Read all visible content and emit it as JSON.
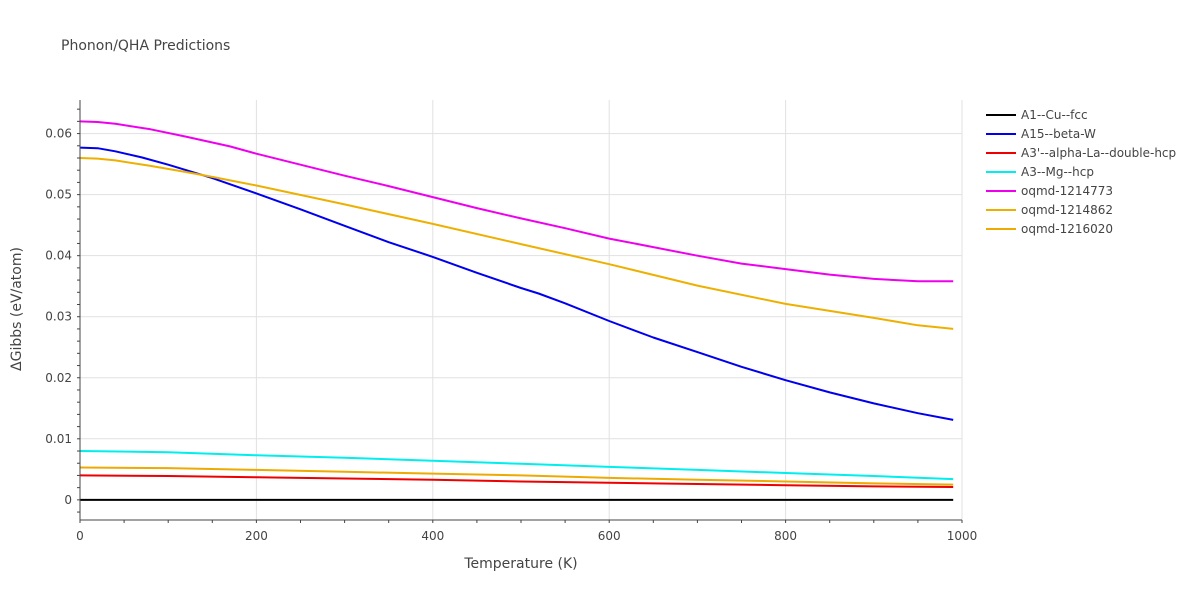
{
  "chart_data": {
    "type": "line",
    "title": "Phonon/QHA Predictions",
    "xlabel": "Temperature (K)",
    "ylabel": "ΔGibbs (eV/atom)",
    "xlim": [
      0,
      1000
    ],
    "ylim": [
      -0.0033,
      0.0655
    ],
    "x_ticks": [
      0,
      200,
      400,
      600,
      800,
      1000
    ],
    "y_ticks": [
      0,
      0.01,
      0.02,
      0.03,
      0.04,
      0.05,
      0.06
    ],
    "x_tick_labels": [
      "0",
      "200",
      "400",
      "600",
      "800",
      "1000"
    ],
    "y_tick_labels": [
      "0",
      "0.01",
      "0.02",
      "0.03",
      "0.04",
      "0.05",
      "0.06"
    ],
    "grid": true,
    "legend_position": "top-right",
    "series": [
      {
        "name": "A1--Cu--fcc",
        "color": "#000000",
        "x": [
          0,
          990
        ],
        "y": [
          0,
          0
        ]
      },
      {
        "name": "A15--beta-W",
        "color": "#0000ee",
        "x": [
          0,
          20,
          40,
          70,
          100,
          150,
          200,
          250,
          300,
          350,
          400,
          450,
          500,
          520,
          550,
          600,
          650,
          700,
          750,
          800,
          850,
          900,
          950,
          990
        ],
        "y": [
          0.0577,
          0.0576,
          0.0571,
          0.0561,
          0.0549,
          0.0527,
          0.0502,
          0.0476,
          0.0449,
          0.0422,
          0.0398,
          0.0372,
          0.0347,
          0.0338,
          0.0322,
          0.0293,
          0.0266,
          0.0242,
          0.0218,
          0.0196,
          0.0176,
          0.0158,
          0.0142,
          0.0131
        ]
      },
      {
        "name": "A3'--alpha-La--double-hcp",
        "color": "#ee0000",
        "x": [
          0,
          100,
          200,
          300,
          400,
          500,
          600,
          700,
          800,
          900,
          990
        ],
        "y": [
          0.004,
          0.0039,
          0.0037,
          0.0035,
          0.0033,
          0.003,
          0.0028,
          0.0026,
          0.0024,
          0.0022,
          0.0021
        ]
      },
      {
        "name": "A3--Mg--hcp",
        "color": "#00eeee",
        "x": [
          0,
          100,
          200,
          300,
          400,
          500,
          600,
          700,
          800,
          900,
          990
        ],
        "y": [
          0.008,
          0.0078,
          0.0073,
          0.0069,
          0.0064,
          0.0059,
          0.0054,
          0.0049,
          0.0044,
          0.0039,
          0.0034
        ]
      },
      {
        "name": "oqmd-1214773",
        "color": "#ee00ee",
        "x": [
          0,
          20,
          40,
          80,
          120,
          170,
          200,
          250,
          300,
          350,
          400,
          450,
          500,
          550,
          600,
          650,
          700,
          750,
          800,
          850,
          900,
          950,
          990
        ],
        "y": [
          0.062,
          0.0619,
          0.0616,
          0.0607,
          0.0595,
          0.0579,
          0.0567,
          0.0549,
          0.0531,
          0.0514,
          0.0496,
          0.0478,
          0.0461,
          0.0445,
          0.0428,
          0.0414,
          0.04,
          0.0387,
          0.0378,
          0.0369,
          0.0362,
          0.0358,
          0.0358
        ]
      },
      {
        "name": "oqmd-1214862",
        "color": "#eeb000",
        "x": [
          0,
          20,
          40,
          80,
          120,
          150,
          200,
          300,
          400,
          500,
          600,
          700,
          800,
          900,
          950,
          990
        ],
        "y": [
          0.056,
          0.0559,
          0.0556,
          0.0547,
          0.0537,
          0.0529,
          0.0515,
          0.0484,
          0.0452,
          0.0419,
          0.0386,
          0.0351,
          0.0321,
          0.0298,
          0.0286,
          0.028
        ]
      },
      {
        "name": "oqmd-1216020",
        "color": "#eeaa00",
        "x": [
          0,
          100,
          200,
          300,
          400,
          500,
          600,
          700,
          800,
          900,
          990
        ],
        "y": [
          0.0053,
          0.0052,
          0.0049,
          0.0046,
          0.0043,
          0.004,
          0.0036,
          0.0033,
          0.003,
          0.0027,
          0.0025
        ]
      }
    ]
  }
}
